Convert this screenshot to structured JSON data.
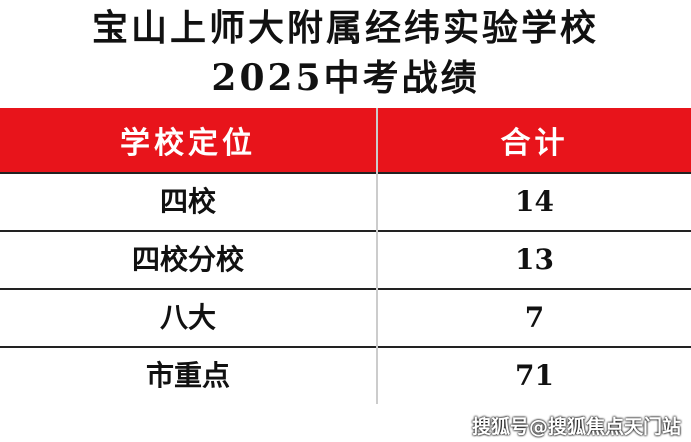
{
  "title_line1": "宝山上师大附属经纬实验学校",
  "title_line2": "2025中考战绩",
  "table": {
    "headers": [
      "学校定位",
      "合计"
    ],
    "rows": [
      [
        "四校",
        "14"
      ],
      [
        "四校分校",
        "13"
      ],
      [
        "八大",
        "7"
      ],
      [
        "市重点",
        "71"
      ]
    ]
  },
  "watermark": "搜狐号@搜狐焦点天门站",
  "colors": {
    "header_bg": "#e8141b"
  }
}
